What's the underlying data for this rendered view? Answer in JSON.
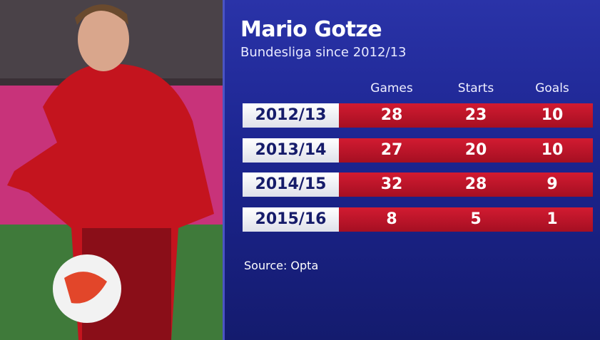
{
  "header": {
    "title": "Mario Gotze",
    "subtitle": "Bundesliga since 2012/13"
  },
  "table": {
    "columns": [
      "Games",
      "Starts",
      "Goals"
    ],
    "rows": [
      [
        "2012/13",
        28,
        23,
        10
      ],
      [
        "2013/14",
        27,
        20,
        10
      ],
      [
        "2014/15",
        32,
        28,
        9
      ],
      [
        "2015/16",
        8,
        5,
        1
      ]
    ]
  },
  "footer": {
    "source": "Source: Opta"
  }
}
